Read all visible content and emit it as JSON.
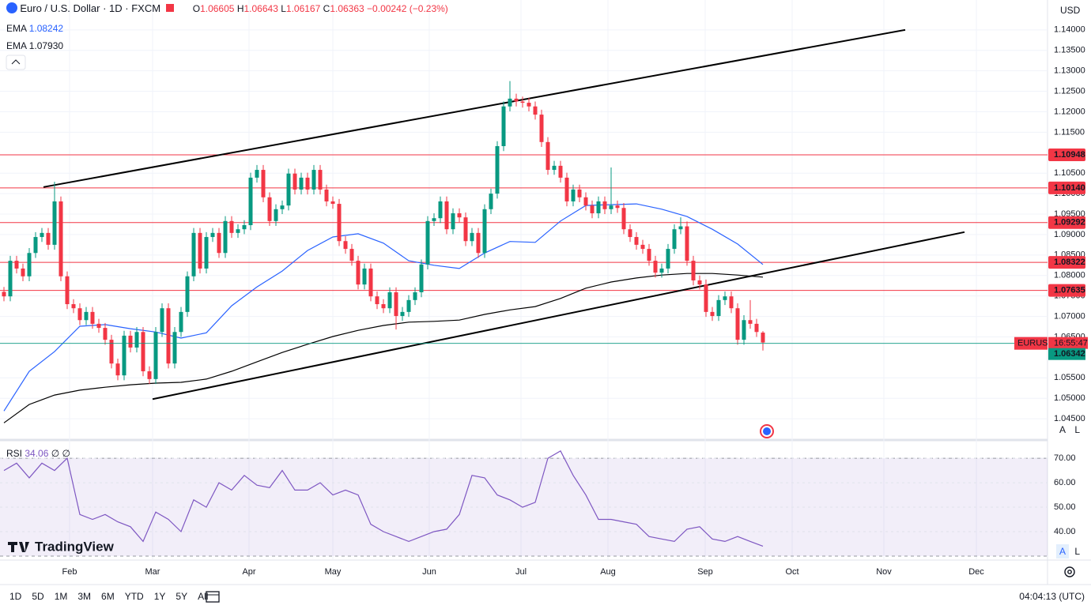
{
  "header": {
    "symbol": "Euro / U.S. Dollar · 1D · FXCM",
    "o": "O",
    "h": "H",
    "l": "L",
    "c": "C",
    "change": "−0.00242 (−0.23%)",
    "currency": "USD",
    "brand": "TradingView"
  },
  "toolbar": {
    "ranges": [
      "1D",
      "5D",
      "1M",
      "3M",
      "6M",
      "YTD",
      "1Y",
      "5Y",
      "All"
    ],
    "clock": "04:04:13 (UTC)",
    "auto": "A",
    "log": "L"
  },
  "chart_data": {
    "type": "candlestick",
    "up_color": "#089981",
    "down_color": "#f23645",
    "candles": {
      "open": [
        1.076,
        1.0749,
        1.0836,
        1.0817,
        1.0798,
        1.0855,
        1.0894,
        1.0904,
        1.0875,
        1.0981,
        1.0798,
        1.073,
        1.072,
        1.0691,
        1.0711,
        1.0682,
        1.0672,
        1.0643,
        1.0585,
        1.0556,
        1.0653,
        1.0624,
        1.0662,
        1.0566,
        1.0547,
        1.0662,
        1.072,
        1.0585,
        1.0662,
        1.0711,
        1.0798,
        1.0904,
        1.0817,
        1.0894,
        1.0904,
        1.0855,
        1.0933,
        1.0904,
        1.0913,
        1.0923,
        1.1039,
        1.1058,
        1.0991,
        1.0933,
        1.0962,
        1.0971,
        1.1049,
        1.101,
        1.1039,
        1.101,
        1.1058,
        1.101,
        1.0981,
        1.0975,
        1.0884,
        1.0865,
        1.0836,
        1.0778,
        1.0817,
        1.0749,
        1.073,
        1.072,
        1.0759,
        1.0701,
        1.0711,
        1.074,
        1.0759,
        1.0827,
        1.0933,
        1.094,
        1.0981,
        1.0913,
        1.0952,
        1.0942,
        1.0884,
        1.0904,
        1.0855,
        1.0962,
        1.1,
        1.1116,
        1.1213,
        1.1232,
        1.1225,
        1.1222,
        1.1213,
        1.1193,
        1.1126,
        1.1058,
        1.1068,
        1.1039,
        1.0981,
        1.101,
        1.0991,
        1.0971,
        1.0952,
        1.0981,
        1.0962,
        1.0971,
        1.0965,
        1.0913,
        1.0894,
        1.0875,
        1.0865,
        1.0836,
        1.0807,
        1.0817,
        1.0865,
        1.0913,
        1.092,
        1.0836,
        1.0788,
        1.0778,
        1.0711,
        1.0701,
        1.074,
        1.0749,
        1.072,
        1.0643,
        1.0691,
        1.0682,
        1.06605
      ],
      "high": [
        1.0772,
        1.0848,
        1.0848,
        1.0829,
        1.0867,
        1.0906,
        1.0916,
        1.0916,
        1.1029,
        1.0993,
        1.081,
        1.0742,
        1.0732,
        1.0723,
        1.0723,
        1.0694,
        1.0684,
        1.0655,
        1.0597,
        1.0665,
        1.0665,
        1.0674,
        1.0674,
        1.0578,
        1.0674,
        1.0732,
        1.0732,
        1.0674,
        1.0723,
        1.081,
        1.0916,
        1.0916,
        1.0906,
        1.0916,
        1.0916,
        1.0945,
        1.0945,
        1.0925,
        1.0935,
        1.1051,
        1.107,
        1.107,
        1.1003,
        1.0974,
        1.0983,
        1.1061,
        1.1061,
        1.1051,
        1.1051,
        1.107,
        1.107,
        1.1022,
        1.0993,
        1.0987,
        1.0896,
        1.0877,
        1.0848,
        1.0829,
        1.0829,
        1.0761,
        1.0742,
        1.0771,
        1.0771,
        1.0723,
        1.0752,
        1.0771,
        1.0839,
        1.0945,
        1.0952,
        1.0993,
        1.0993,
        1.0964,
        1.0964,
        1.0954,
        1.0916,
        1.0916,
        1.0974,
        1.1012,
        1.1128,
        1.1225,
        1.1275,
        1.1244,
        1.1237,
        1.1234,
        1.1225,
        1.1205,
        1.1138,
        1.108,
        1.108,
        1.1051,
        1.1022,
        1.1022,
        1.1003,
        1.0983,
        1.0993,
        1.0993,
        1.1064,
        1.0983,
        1.0977,
        1.0925,
        1.0906,
        1.0887,
        1.0877,
        1.0848,
        1.0829,
        1.0877,
        1.0925,
        1.0942,
        1.0932,
        1.0848,
        1.08,
        1.079,
        1.0723,
        1.0752,
        1.0761,
        1.0761,
        1.0732,
        1.0703,
        1.074,
        1.0694,
        1.06643
      ],
      "low": [
        1.0737,
        1.0737,
        1.0805,
        1.0786,
        1.0786,
        1.0843,
        1.0882,
        1.0863,
        1.0863,
        1.0786,
        1.0718,
        1.0708,
        1.0679,
        1.0679,
        1.067,
        1.066,
        1.0631,
        1.0573,
        1.0544,
        1.0544,
        1.0612,
        1.0612,
        1.0554,
        1.0535,
        1.0535,
        1.065,
        1.0573,
        1.0573,
        1.065,
        1.0699,
        1.0786,
        1.0805,
        1.0805,
        1.0882,
        1.0843,
        1.0843,
        1.0892,
        1.0892,
        1.0901,
        1.0911,
        1.1027,
        1.0979,
        1.0921,
        1.0921,
        1.095,
        1.0959,
        1.0998,
        1.0998,
        1.0998,
        1.0998,
        1.0998,
        1.0969,
        1.0963,
        1.0872,
        1.0853,
        1.0824,
        1.0766,
        1.0766,
        1.0737,
        1.0718,
        1.0708,
        1.0708,
        1.0668,
        1.0689,
        1.0699,
        1.0728,
        1.0747,
        1.0815,
        1.0921,
        1.0928,
        1.0901,
        1.0901,
        1.093,
        1.0872,
        1.0872,
        1.0843,
        1.0843,
        1.095,
        1.0988,
        1.1104,
        1.1201,
        1.1213,
        1.121,
        1.1201,
        1.1181,
        1.1114,
        1.1046,
        1.1046,
        1.1027,
        1.0969,
        1.0969,
        1.0979,
        1.0959,
        1.094,
        1.094,
        1.095,
        1.095,
        1.0953,
        1.0901,
        1.0882,
        1.0863,
        1.0853,
        1.0824,
        1.0795,
        1.0795,
        1.0805,
        1.0853,
        1.0901,
        1.0824,
        1.0776,
        1.0766,
        1.0699,
        1.0689,
        1.0689,
        1.0728,
        1.0708,
        1.0631,
        1.0631,
        1.067,
        1.065,
        1.06167
      ],
      "close": [
        1.0749,
        1.0836,
        1.0817,
        1.0798,
        1.0855,
        1.0894,
        1.0904,
        1.0875,
        1.0981,
        1.0798,
        1.073,
        1.072,
        1.0691,
        1.0711,
        1.0682,
        1.0672,
        1.0643,
        1.0585,
        1.0556,
        1.0653,
        1.0624,
        1.0662,
        1.0566,
        1.0547,
        1.0662,
        1.072,
        1.0585,
        1.0662,
        1.0711,
        1.0798,
        1.0904,
        1.0817,
        1.0894,
        1.0904,
        1.0855,
        1.0933,
        1.0904,
        1.0913,
        1.0923,
        1.1039,
        1.1058,
        1.0991,
        1.0933,
        1.0962,
        1.0971,
        1.1049,
        1.101,
        1.1039,
        1.101,
        1.1058,
        1.101,
        1.0981,
        1.0975,
        1.0884,
        1.0865,
        1.0836,
        1.0778,
        1.0817,
        1.0749,
        1.073,
        1.072,
        1.0759,
        1.0701,
        1.0711,
        1.074,
        1.0759,
        1.0827,
        1.0933,
        1.094,
        1.0981,
        1.0913,
        1.0952,
        1.0942,
        1.0884,
        1.0904,
        1.0855,
        1.0962,
        1.1,
        1.1116,
        1.1213,
        1.1232,
        1.1225,
        1.1222,
        1.1213,
        1.1193,
        1.1126,
        1.1058,
        1.1068,
        1.1039,
        1.0981,
        1.101,
        1.0991,
        1.0971,
        1.0952,
        1.0981,
        1.0962,
        1.0971,
        1.0965,
        1.0913,
        1.0894,
        1.0875,
        1.0865,
        1.0836,
        1.0807,
        1.0817,
        1.0865,
        1.0913,
        1.092,
        1.0836,
        1.0788,
        1.0778,
        1.0711,
        1.0701,
        1.074,
        1.0749,
        1.072,
        1.0643,
        1.0691,
        1.0682,
        1.0662,
        1.06363
      ]
    },
    "ema": [
      {
        "name": "EMA",
        "label": "1.08242",
        "color": "#2962ff",
        "values": [
          1.0469,
          1.0566,
          1.0614,
          1.0676,
          1.068,
          1.067,
          1.0662,
          1.0647,
          1.066,
          1.0726,
          1.0772,
          1.0811,
          1.0861,
          1.0894,
          1.0902,
          1.0879,
          1.0836,
          1.0825,
          1.0817,
          1.0855,
          1.0883,
          1.0881,
          1.0933,
          1.0971,
          1.0973,
          1.0975,
          1.0962,
          1.0944,
          1.0913,
          1.0877,
          1.0827
        ]
      },
      {
        "name": "EMA",
        "label": "1.07930",
        "color": "#000000",
        "values": [
          1.044,
          1.0485,
          1.0508,
          1.052,
          1.0527,
          1.0533,
          1.0537,
          1.0539,
          1.0547,
          1.0566,
          1.0589,
          1.0612,
          1.0632,
          1.0651,
          1.0666,
          1.0678,
          1.0686,
          1.0688,
          1.0691,
          1.0705,
          1.0716,
          1.0724,
          1.0744,
          1.0769,
          1.0784,
          1.0794,
          1.0801,
          1.0805,
          1.0805,
          1.0801,
          1.0796
        ]
      }
    ],
    "levels": [
      {
        "value": 1.10948,
        "label": "1.10948"
      },
      {
        "value": 1.1014,
        "label": "1.10140"
      },
      {
        "value": 1.09292,
        "label": "1.09292"
      },
      {
        "value": 1.08322,
        "label": "1.08322"
      },
      {
        "value": 1.07635,
        "label": "1.07635"
      }
    ],
    "level_color": "#f23645",
    "trendlines": [
      {
        "start": 1.1016,
        "end": 1.14
      },
      {
        "start": 1.0498,
        "end": 1.0906
      }
    ],
    "current": {
      "symbol": "EURUSD",
      "countdown": "16:55:47",
      "value": 1.06342,
      "color": "#089981"
    },
    "ylim": [
      1.0402,
      1.1473
    ],
    "yticks": [
      {
        "value": 1.045,
        "label": "1.04500"
      },
      {
        "value": 1.05,
        "label": "1.05000"
      },
      {
        "value": 1.055,
        "label": "1.05500"
      },
      {
        "value": 1.065,
        "label": "1.06500"
      },
      {
        "value": 1.07,
        "label": "1.07000"
      },
      {
        "value": 1.075,
        "label": "1.07500"
      },
      {
        "value": 1.08,
        "label": "1.08000"
      },
      {
        "value": 1.085,
        "label": "1.08500"
      },
      {
        "value": 1.09,
        "label": "1.09000"
      },
      {
        "value": 1.095,
        "label": "1.09500"
      },
      {
        "value": 1.1,
        "label": "1.10000"
      },
      {
        "value": 1.105,
        "label": "1.10500"
      },
      {
        "value": 1.115,
        "label": "1.11500"
      },
      {
        "value": 1.12,
        "label": "1.12000"
      },
      {
        "value": 1.125,
        "label": "1.12500"
      },
      {
        "value": 1.13,
        "label": "1.13000"
      },
      {
        "value": 1.135,
        "label": "1.13500"
      },
      {
        "value": 1.14,
        "label": "1.14000"
      }
    ],
    "categories": [
      "Feb",
      "Mar",
      "Apr",
      "May",
      "Jun",
      "Jul",
      "Aug",
      "Sep",
      "Oct",
      "Nov",
      "Dec"
    ],
    "grid": true,
    "rsi": {
      "name": "RSI",
      "label": "34.06",
      "params": "∅ ∅",
      "color": "#7e57c2",
      "band": [
        30,
        70
      ],
      "values": [
        65,
        68,
        62,
        68,
        65,
        70,
        47,
        45,
        47,
        44,
        42,
        36,
        48,
        45,
        40,
        53,
        50,
        60,
        57,
        63,
        59,
        58,
        65,
        57,
        57,
        60,
        55,
        57,
        55,
        43,
        40,
        38,
        36,
        38,
        40,
        41,
        47,
        63,
        62,
        55,
        53,
        50,
        52,
        70,
        73,
        63,
        55,
        45,
        45,
        44,
        43,
        38,
        37,
        36,
        41,
        42,
        37,
        36,
        38,
        36,
        34.06
      ],
      "ylim": [
        28.7,
        76.5
      ],
      "yticks": [
        {
          "value": 70,
          "label": "70.00"
        },
        {
          "value": 60,
          "label": "60.00"
        },
        {
          "value": 50,
          "label": "50.00"
        },
        {
          "value": 40,
          "label": "40.00"
        }
      ]
    }
  }
}
